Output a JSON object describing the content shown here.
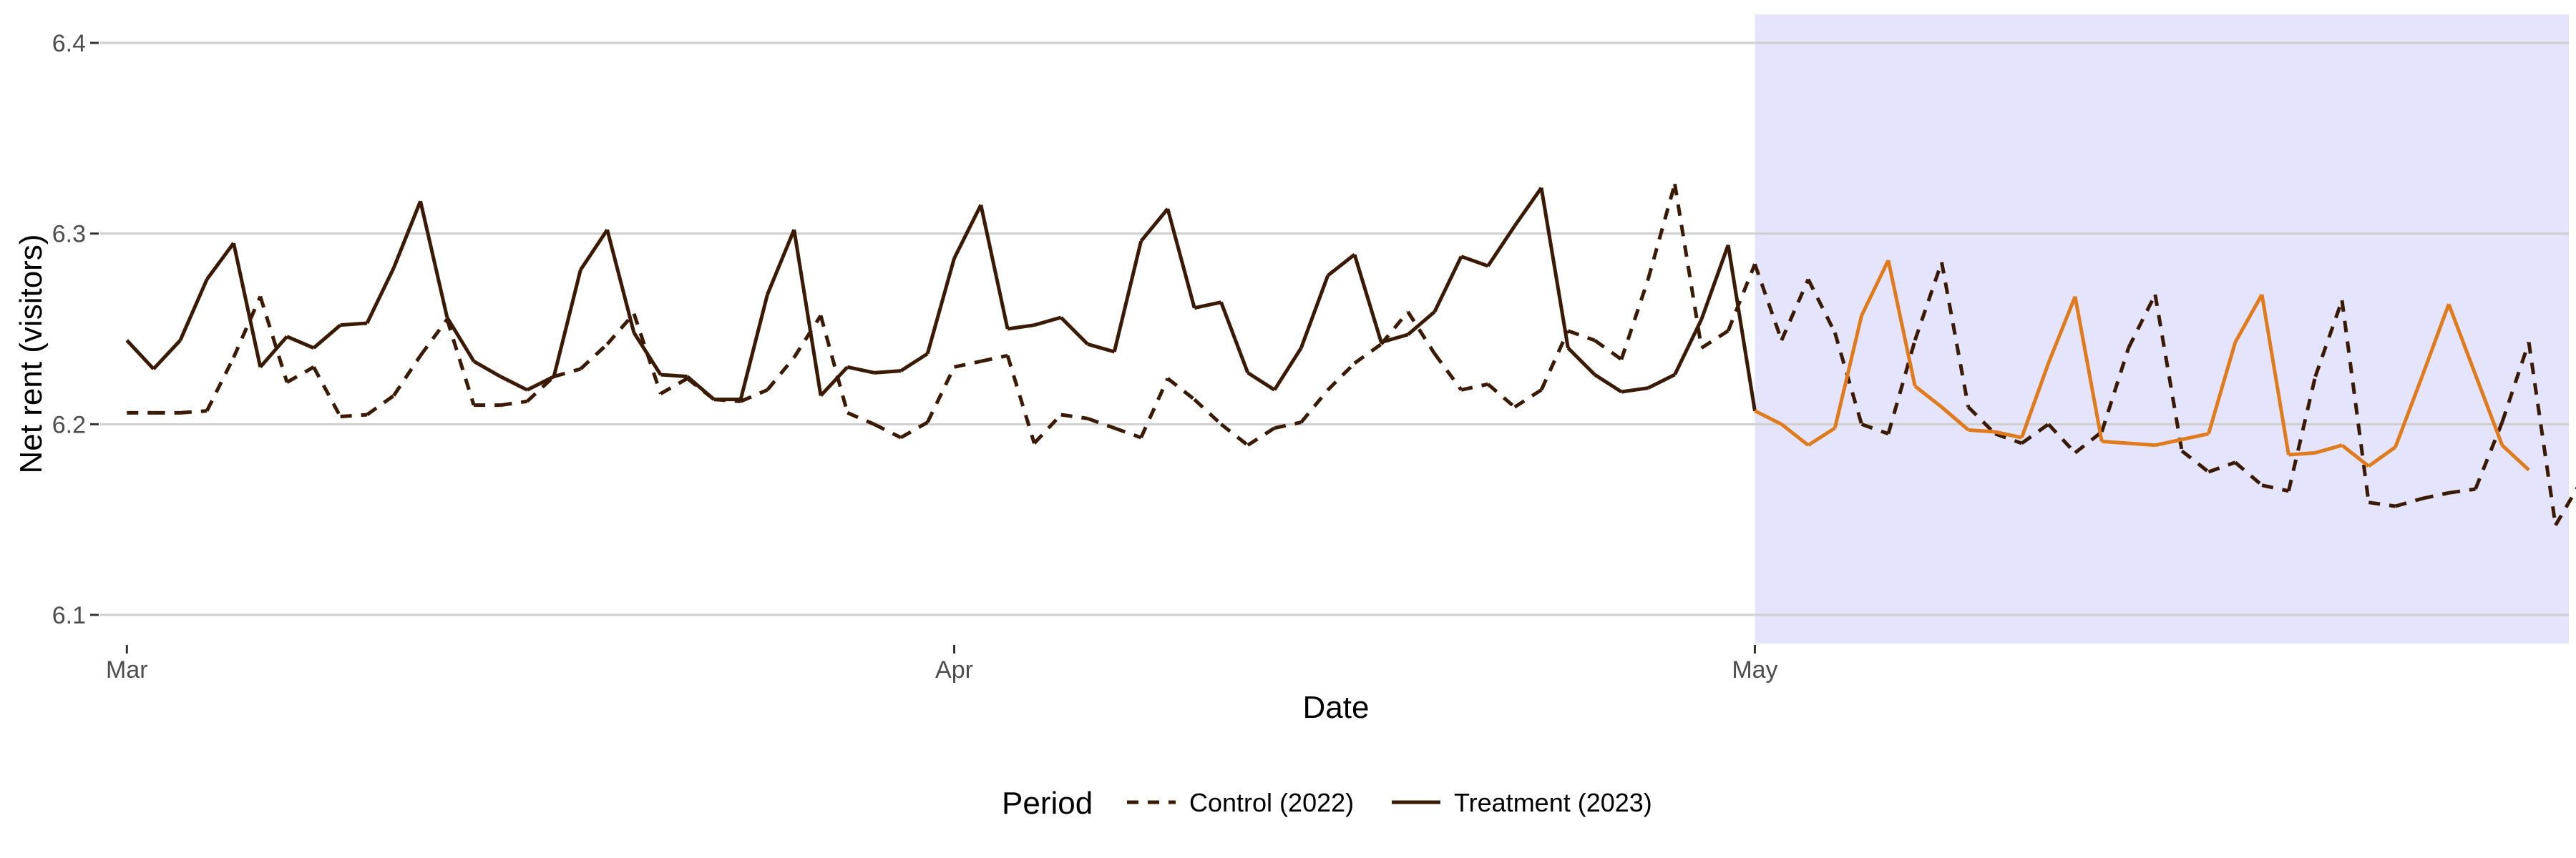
{
  "chart_data": {
    "type": "line",
    "title": "",
    "xlabel": "Date",
    "ylabel": "Net rent (visitors)",
    "ylim": [
      6.085,
      6.415
    ],
    "yticks": [
      6.1,
      6.2,
      6.3,
      6.4
    ],
    "ytick_labels": [
      "6.1",
      "6.2",
      "6.3",
      "6.4"
    ],
    "xlim_days": [
      -1,
      91.5
    ],
    "xticks": [
      {
        "label": "Mar",
        "day": 0
      },
      {
        "label": "Apr",
        "day": 31
      },
      {
        "label": "May",
        "day": 61
      }
    ],
    "highlight_region": {
      "from_day": 61,
      "to_day": 91.5,
      "color": "#e4e4fc"
    },
    "legend": {
      "title": "Period",
      "position": "bottom",
      "entries": [
        {
          "label": "Control (2022)",
          "style": "dashed"
        },
        {
          "label": "Treatment (2023)",
          "style": "solid"
        }
      ]
    },
    "series": [
      {
        "name": "Control (2022)",
        "style": "dashed",
        "color": "#3a1a04",
        "start_day": 0,
        "values": [
          6.206,
          6.206,
          6.206,
          6.207,
          6.235,
          6.267,
          6.222,
          6.23,
          6.204,
          6.205,
          6.215,
          6.236,
          6.255,
          6.21,
          6.21,
          6.212,
          6.225,
          6.229,
          6.242,
          6.258,
          6.216,
          6.224,
          6.213,
          6.212,
          6.218,
          6.235,
          6.257,
          6.206,
          6.2,
          6.193,
          6.201,
          6.23,
          6.233,
          6.236,
          6.19,
          6.205,
          6.203,
          6.198,
          6.193,
          6.224,
          6.213,
          6.2,
          6.189,
          6.198,
          6.201,
          6.218,
          6.232,
          6.242,
          6.259,
          6.237,
          6.218,
          6.221,
          6.209,
          6.218,
          6.249,
          6.244,
          6.234,
          6.276,
          6.326,
          6.24,
          6.249,
          6.284,
          6.244,
          6.276,
          6.248,
          6.2,
          6.195,
          6.244,
          6.285,
          6.209,
          6.195,
          6.19,
          6.2,
          6.185,
          6.196,
          6.24,
          6.268,
          6.186,
          6.175,
          6.18,
          6.168,
          6.165,
          6.225,
          6.265,
          6.159,
          6.157,
          6.161,
          6.164,
          6.166,
          6.201,
          6.243,
          6.147,
          6.171
        ]
      },
      {
        "name": "Treatment (2023)",
        "style": "solid",
        "color": "#3a1a04",
        "color_highlight": "#e07b1c",
        "highlight_from_day": 61,
        "start_day": 0,
        "values": [
          6.244,
          6.229,
          6.244,
          6.276,
          6.295,
          6.23,
          6.246,
          6.24,
          6.252,
          6.253,
          6.282,
          6.317,
          6.256,
          6.233,
          6.225,
          6.218,
          6.225,
          6.281,
          6.302,
          6.248,
          6.226,
          6.225,
          6.213,
          6.213,
          6.268,
          6.302,
          6.215,
          6.23,
          6.227,
          6.228,
          6.237,
          6.287,
          6.315,
          6.25,
          6.252,
          6.256,
          6.242,
          6.238,
          6.296,
          6.313,
          6.261,
          6.264,
          6.227,
          6.218,
          6.24,
          6.278,
          6.289,
          6.243,
          6.247,
          6.259,
          6.288,
          6.283,
          6.304,
          6.324,
          6.24,
          6.226,
          6.217,
          6.219,
          6.226,
          6.255,
          6.294,
          6.207,
          6.2,
          6.189,
          6.198,
          6.257,
          6.286,
          6.22,
          6.209,
          6.197,
          6.196,
          6.193,
          6.232,
          6.267,
          6.191,
          6.19,
          6.189,
          6.192,
          6.195,
          6.243,
          6.268,
          6.184,
          6.185,
          6.189,
          6.178,
          6.188,
          6.225,
          6.263,
          6.226,
          6.189,
          6.176
        ]
      }
    ]
  }
}
